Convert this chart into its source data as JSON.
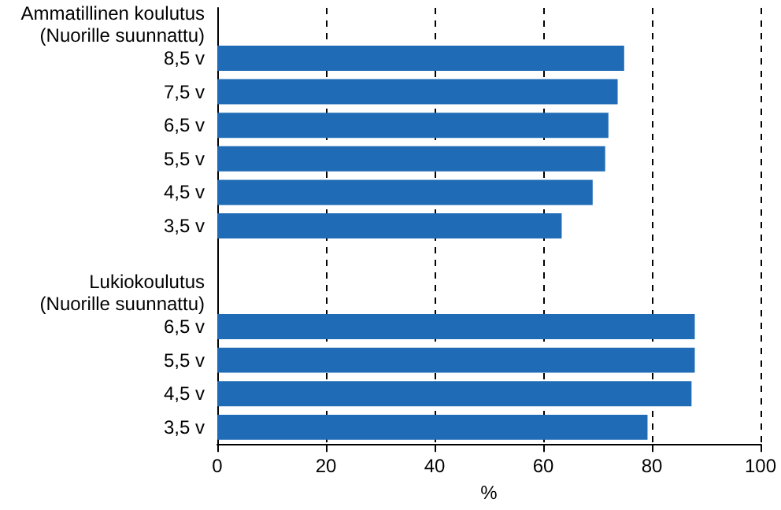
{
  "chart_data": {
    "type": "bar",
    "orientation": "horizontal",
    "xlabel": "%",
    "categories": [
      "Ammatillinen koulutus\n(Nuorille suunnattu)",
      "8,5 v",
      "7,5 v",
      "6,5 v",
      "5,5 v",
      "4,5 v",
      "3,5 v",
      null,
      "Lukiokoulutus\n(Nuorille suunnattu)",
      "6,5 v",
      "5,5 v",
      "4,5 v",
      "3,5 v"
    ],
    "values": [
      null,
      74.9,
      73.7,
      72.0,
      71.4,
      69.1,
      63.4,
      null,
      null,
      87.9,
      87.9,
      87.3,
      79.2
    ],
    "color": "#1f6bb5",
    "xlim": [
      0,
      100
    ],
    "xticks": [
      0,
      20,
      40,
      60,
      80,
      100
    ],
    "grid": "x"
  }
}
